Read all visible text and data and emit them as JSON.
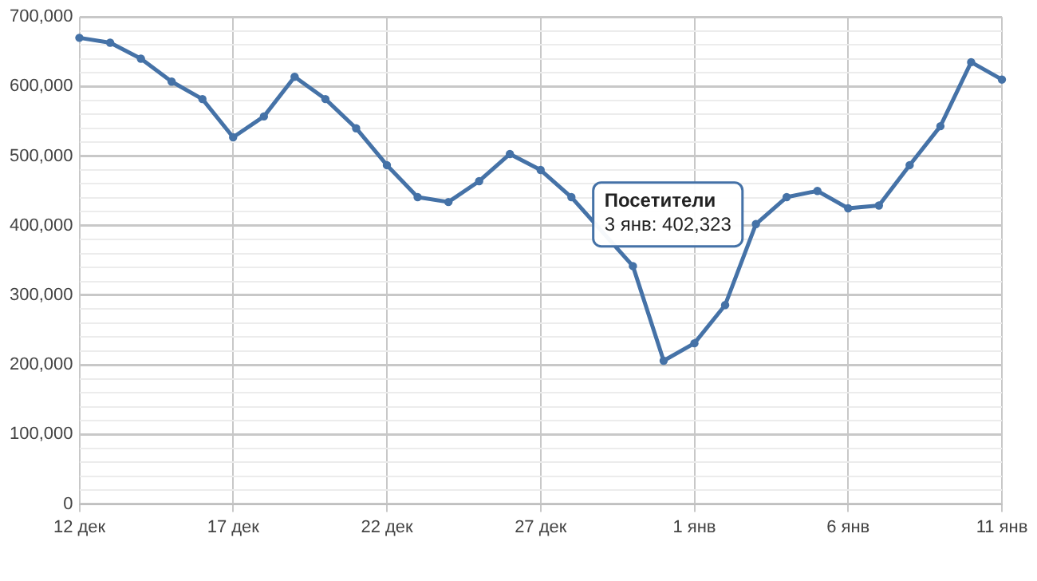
{
  "chart_data": {
    "type": "line",
    "categories": [
      "12 дек",
      null,
      null,
      null,
      null,
      "17 дек",
      null,
      null,
      null,
      null,
      "22 дек",
      null,
      null,
      null,
      null,
      "27 дек",
      null,
      null,
      null,
      null,
      "1 янв",
      null,
      null,
      null,
      null,
      "6 янв",
      null,
      null,
      null,
      null,
      "11 янв"
    ],
    "series": [
      {
        "color": "#4572a7",
        "values": [
          670000,
          663000,
          640000,
          607000,
          582000,
          527000,
          557000,
          614000,
          582000,
          540000,
          487000,
          441000,
          434000,
          464000,
          503000,
          480000,
          441000,
          null,
          342000,
          206000,
          231000,
          286000,
          402323,
          441000,
          450000,
          425000,
          429000,
          487000,
          543000,
          635000,
          610000
        ]
      }
    ],
    "ylim": [
      0,
      700000
    ],
    "yticks": [
      0,
      {
        "value": 20000,
        "label": null
      },
      {
        "value": 40000,
        "label": null
      },
      {
        "value": 60000,
        "label": null
      },
      {
        "value": 80000,
        "label": null
      },
      {
        "value": 100000,
        "label": "100,000"
      },
      {
        "value": 120000,
        "label": null
      },
      {
        "value": 140000,
        "label": null
      },
      {
        "value": 160000,
        "label": null
      },
      {
        "value": 180000,
        "label": null
      },
      {
        "value": 200000,
        "label": "200,000"
      },
      {
        "value": 220000,
        "label": null
      },
      {
        "value": 240000,
        "label": null
      },
      {
        "value": 260000,
        "label": null
      },
      {
        "value": 280000,
        "label": null
      },
      {
        "value": 300000,
        "label": "300,000"
      },
      {
        "value": 320000,
        "label": null
      },
      {
        "value": 340000,
        "label": null
      },
      {
        "value": 360000,
        "label": null
      },
      {
        "value": 380000,
        "label": null
      },
      {
        "value": 400000,
        "label": "400,000"
      },
      {
        "value": 420000,
        "label": null
      },
      {
        "value": 440000,
        "label": null
      },
      {
        "value": 460000,
        "label": null
      },
      {
        "value": 480000,
        "label": null
      },
      {
        "value": 500000,
        "label": "500,000"
      },
      {
        "value": 520000,
        "label": null
      },
      {
        "value": 540000,
        "label": null
      },
      {
        "value": 560000,
        "label": null
      },
      {
        "value": 580000,
        "label": null
      },
      {
        "value": 600000,
        "label": "600,000"
      },
      {
        "value": 620000,
        "label": null
      },
      {
        "value": 640000,
        "label": null
      },
      {
        "value": 660000,
        "label": null
      },
      {
        "value": 680000,
        "label": null
      },
      {
        "value": 700000,
        "label": "700,000"
      }
    ],
    "annotations": [
      "Посетители\n3 янв: 402,323"
    ],
    "grid": true,
    "marker": "circle",
    "line_style": "solid",
    "legend": false
  }
}
